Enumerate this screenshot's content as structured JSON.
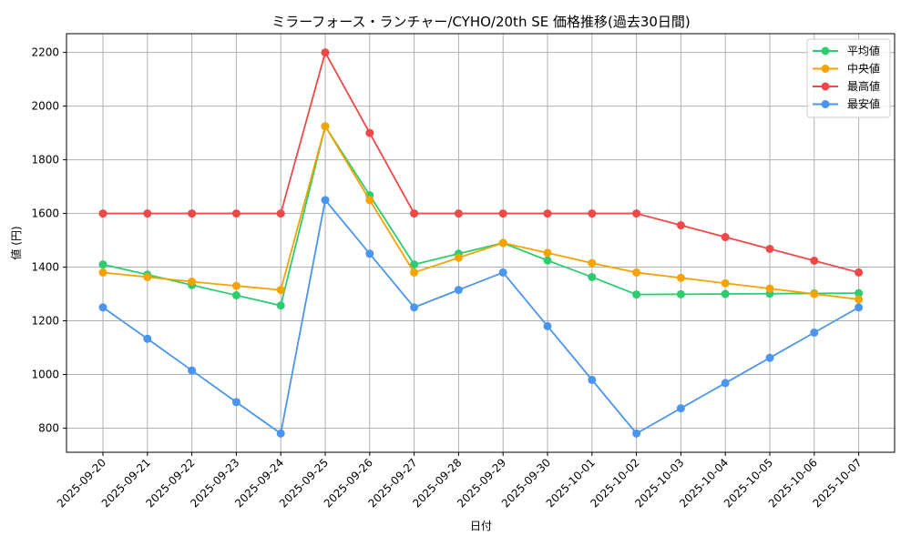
{
  "chart_data": {
    "type": "line",
    "title": "ミラーフォース・ランチャー/CYHO/20th SE 価格推移(過去30日間)",
    "xlabel": "日付",
    "ylabel": "値 (円)",
    "categories": [
      "2025-09-20",
      "2025-09-21",
      "2025-09-22",
      "2025-09-23",
      "2025-09-24",
      "2025-09-25",
      "2025-09-26",
      "2025-09-27",
      "2025-09-28",
      "2025-09-29",
      "2025-09-30",
      "2025-10-01",
      "2025-10-02",
      "2025-10-03",
      "2025-10-04",
      "2025-10-05",
      "2025-10-06",
      "2025-10-07"
    ],
    "yticks": [
      800,
      1000,
      1200,
      1400,
      1600,
      1800,
      2000,
      2200
    ],
    "ylim": [
      710,
      2270
    ],
    "grid": true,
    "legend_position": "top-right",
    "series": [
      {
        "name": "平均値",
        "color": "#2ecc71",
        "values": [
          1410,
          1372,
          1333,
          1295,
          1257,
          1925,
          1668,
          1410,
          1450,
          1490,
          1425,
          1363,
          1298,
          1299,
          1300,
          1301,
          1302,
          1303
        ]
      },
      {
        "name": "中央値",
        "color": "#f5a300",
        "values": [
          1380,
          1363,
          1346,
          1330,
          1315,
          1925,
          1650,
          1380,
          1435,
          1490,
          1453,
          1415,
          1380,
          1360,
          1340,
          1320,
          1300,
          1280
        ]
      },
      {
        "name": "最高値",
        "color": "#f04848",
        "values": [
          1600,
          1600,
          1600,
          1600,
          1600,
          2200,
          1900,
          1600,
          1600,
          1600,
          1600,
          1600,
          1600,
          1556,
          1512,
          1468,
          1424,
          1380
        ]
      },
      {
        "name": "最安値",
        "color": "#4a95f0",
        "values": [
          1250,
          1133,
          1015,
          897,
          780,
          1650,
          1450,
          1250,
          1315,
          1380,
          1180,
          980,
          780,
          874,
          968,
          1062,
          1156,
          1250
        ]
      }
    ]
  }
}
